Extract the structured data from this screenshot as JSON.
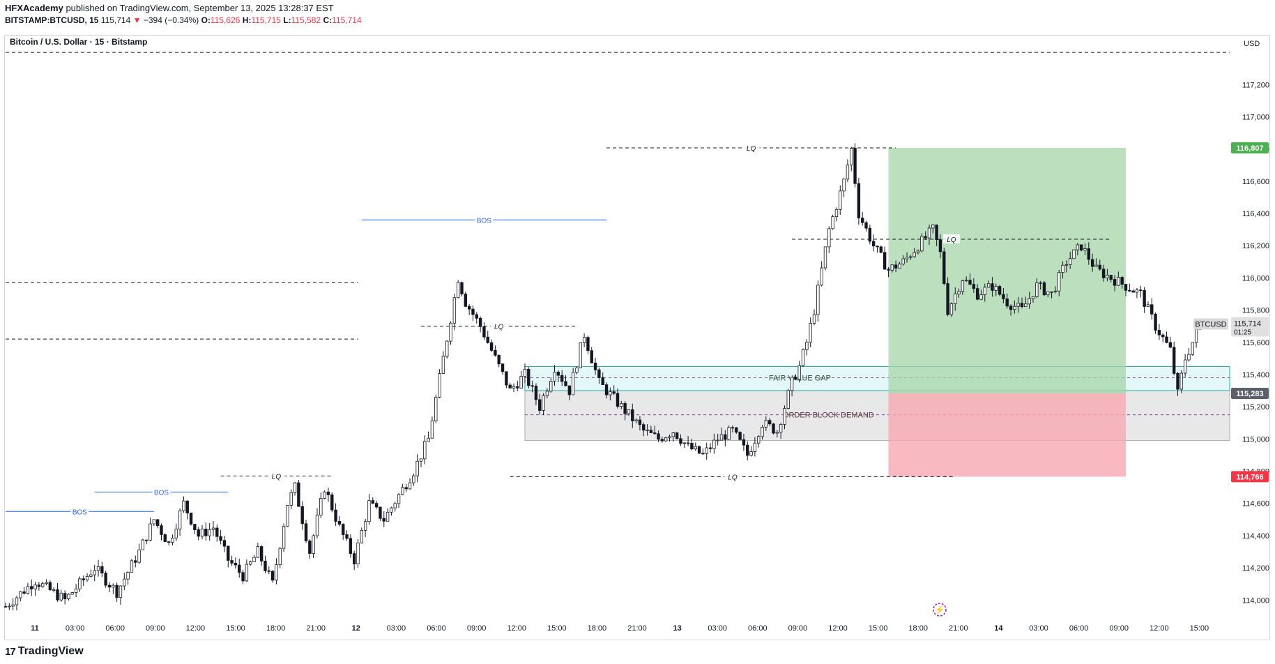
{
  "header": {
    "author": "HFXAcademy",
    "published_text": "published on TradingView.com, September 13, 2025 13:28:37 EST",
    "symbol_line": "BITSTAMP:BTCUSD, 15",
    "last": "115,714",
    "change": "−394 (−0.34%)",
    "o_label": "O:",
    "o": "115,626",
    "h_label": "H:",
    "h": "115,715",
    "l_label": "L:",
    "l": "115,582",
    "c_label": "C:",
    "c": "115,714"
  },
  "footer": {
    "brand": "TradingView"
  },
  "chart_data": {
    "type": "candlestick",
    "title": "Bitcoin / U.S. Dollar · 15 · Bitstamp",
    "currency": "USD",
    "y_ticks": [
      114000,
      114200,
      114400,
      114600,
      114800,
      115000,
      115200,
      115400,
      115600,
      115800,
      116000,
      116200,
      116400,
      116600,
      116800,
      117000,
      117200
    ],
    "y_tick_labels": [
      "114,000",
      "114,200",
      "114,400",
      "114,600",
      "114,800",
      "115,000",
      "115,200",
      "115,400",
      "115,600",
      "115,800",
      "116,000",
      "116,200",
      "116,400",
      "116,600",
      "116,800",
      "117,000",
      "117,200"
    ],
    "ylim": [
      113880,
      117500
    ],
    "x_ticks": [
      "11",
      "03:00",
      "06:00",
      "09:00",
      "12:00",
      "15:00",
      "18:00",
      "21:00",
      "12",
      "03:00",
      "06:00",
      "09:00",
      "12:00",
      "15:00",
      "18:00",
      "21:00",
      "13",
      "03:00",
      "06:00",
      "09:00",
      "12:00",
      "15:00",
      "18:00",
      "21:00",
      "14",
      "03:00",
      "06:00",
      "09:00",
      "12:00",
      "15:00"
    ],
    "x_tick_bold": [
      true,
      false,
      false,
      false,
      false,
      false,
      false,
      false,
      true,
      false,
      false,
      false,
      false,
      false,
      false,
      false,
      true,
      false,
      false,
      false,
      false,
      false,
      false,
      false,
      true,
      false,
      false,
      false,
      false,
      false
    ],
    "price_path": [
      [
        0,
        113960
      ],
      [
        8,
        114120
      ],
      [
        16,
        114000
      ],
      [
        24,
        114200
      ],
      [
        30,
        114050
      ],
      [
        36,
        114300
      ],
      [
        40,
        114500
      ],
      [
        44,
        114350
      ],
      [
        48,
        114600
      ],
      [
        52,
        114400
      ],
      [
        56,
        114450
      ],
      [
        60,
        114250
      ],
      [
        64,
        114150
      ],
      [
        68,
        114300
      ],
      [
        72,
        114100
      ],
      [
        76,
        114600
      ],
      [
        78,
        114700
      ],
      [
        82,
        114300
      ],
      [
        86,
        114700
      ],
      [
        90,
        114450
      ],
      [
        94,
        114250
      ],
      [
        98,
        114600
      ],
      [
        102,
        114500
      ],
      [
        106,
        114650
      ],
      [
        110,
        114800
      ],
      [
        114,
        115000
      ],
      [
        118,
        115500
      ],
      [
        122,
        116000
      ],
      [
        124,
        115850
      ],
      [
        128,
        115700
      ],
      [
        132,
        115500
      ],
      [
        136,
        115300
      ],
      [
        140,
        115400
      ],
      [
        144,
        115200
      ],
      [
        148,
        115450
      ],
      [
        152,
        115300
      ],
      [
        156,
        115650
      ],
      [
        160,
        115350
      ],
      [
        164,
        115250
      ],
      [
        168,
        115150
      ],
      [
        172,
        115050
      ],
      [
        176,
        115000
      ],
      [
        180,
        115050
      ],
      [
        184,
        114950
      ],
      [
        188,
        114900
      ],
      [
        192,
        115000
      ],
      [
        196,
        115050
      ],
      [
        200,
        114900
      ],
      [
        204,
        115100
      ],
      [
        208,
        115050
      ],
      [
        212,
        115350
      ],
      [
        214,
        115450
      ],
      [
        216,
        115600
      ],
      [
        218,
        115800
      ],
      [
        222,
        116300
      ],
      [
        226,
        116600
      ],
      [
        228,
        116800
      ],
      [
        230,
        116400
      ],
      [
        234,
        116200
      ],
      [
        238,
        116050
      ],
      [
        242,
        116100
      ],
      [
        246,
        116200
      ],
      [
        250,
        116300
      ],
      [
        252,
        116150
      ],
      [
        254,
        115800
      ],
      [
        258,
        116000
      ],
      [
        262,
        115900
      ],
      [
        266,
        115950
      ],
      [
        270,
        115850
      ],
      [
        274,
        115800
      ],
      [
        278,
        115950
      ],
      [
        282,
        115900
      ],
      [
        286,
        116100
      ],
      [
        290,
        116200
      ],
      [
        294,
        116050
      ],
      [
        298,
        116000
      ],
      [
        302,
        115950
      ],
      [
        306,
        115900
      ],
      [
        310,
        115700
      ],
      [
        314,
        115550
      ],
      [
        316,
        115280
      ],
      [
        318,
        115500
      ],
      [
        320,
        115600
      ],
      [
        322,
        115714
      ]
    ],
    "annotations": {
      "bos": [
        {
          "label": "BOS",
          "price": 114550,
          "x1": 0,
          "x2": 40
        },
        {
          "label": "BOS",
          "price": 114670,
          "x1": 24,
          "x2": 60
        },
        {
          "label": "BOS",
          "price": 116360,
          "x1": 96,
          "x2": 162
        }
      ],
      "lq": [
        {
          "label": "LQ",
          "price": 114770,
          "x1": 58,
          "x2": 88
        },
        {
          "label": "LQ",
          "price": 115700,
          "x1": 112,
          "x2": 154
        },
        {
          "label": "LQ",
          "price": 116807,
          "x1": 162,
          "x2": 240
        },
        {
          "label": "LQ",
          "price": 116240,
          "x1": 212,
          "x2": 298
        },
        {
          "label": "LQ",
          "price": 114766,
          "x1": 136,
          "x2": 256
        }
      ],
      "dashed_levels": [
        117400,
        115970,
        115620
      ],
      "fair_value_gap": {
        "label": "FAIR VALUE GAP",
        "top": 115450,
        "bottom": 115300,
        "mid": 115380,
        "x1": 140
      },
      "order_block": {
        "label": "ORDER BLOCK DEMAND",
        "top": 115300,
        "bottom": 114990,
        "mid": 115150,
        "x1": 140
      },
      "position": {
        "entry": 115283,
        "target": 116807,
        "stop": 114766,
        "x1": 238,
        "x2": 302
      }
    },
    "price_tags": {
      "target": "116,807",
      "stop": "114,766",
      "entry": "115,283",
      "current": "115,714",
      "countdown": "01:25",
      "symbol": "BTCUSD"
    },
    "colors": {
      "up": "#131722",
      "down": "#131722",
      "bos": "#2962ff",
      "green_zone": "#a5d6a7",
      "red_zone": "#f7a7b0",
      "fvg": "#b2ebf2",
      "ob": "#e0e0e0",
      "green_tag": "#4caf50",
      "red_tag": "#f23645",
      "grey_tag": "#5d606b"
    }
  }
}
